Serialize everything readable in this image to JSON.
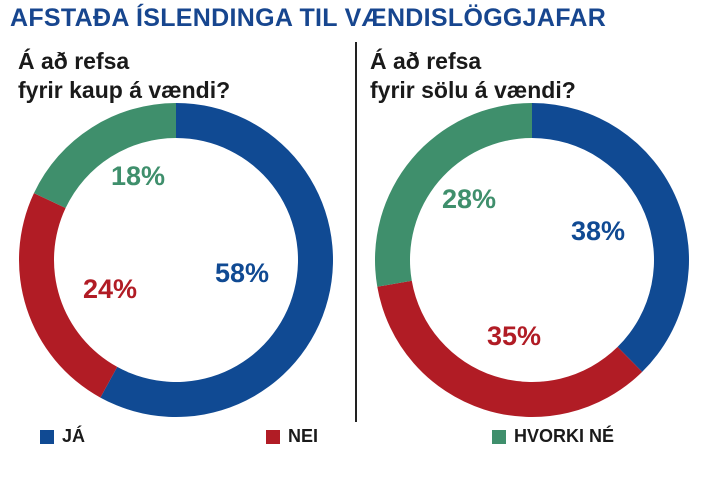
{
  "title": "AFSTAÐA ÍSLENDINGA TIL VÆNDISLÖGGJAFAR",
  "colors": {
    "ja": "#104a93",
    "nei": "#b11c25",
    "hvorki": "#3f8f6c",
    "title": "#17468f"
  },
  "legend": [
    {
      "label": "JÁ",
      "color": "#104a93"
    },
    {
      "label": "NEI",
      "color": "#b11c25"
    },
    {
      "label": "HVORKI NÉ",
      "color": "#3f8f6c"
    }
  ],
  "chart_data": [
    {
      "type": "pie",
      "title_lines": [
        "Á að refsa",
        "fyrir kaup á vændi?"
      ],
      "categories": [
        "JÁ",
        "NEI",
        "HVORKI NÉ"
      ],
      "values": [
        58,
        24,
        18
      ],
      "labels": [
        "58%",
        "24%",
        "18%"
      ]
    },
    {
      "type": "pie",
      "title_lines": [
        "Á að refsa",
        "fyrir sölu á vændi?"
      ],
      "categories": [
        "JÁ",
        "NEI",
        "HVORKI NÉ"
      ],
      "values": [
        38,
        35,
        28
      ],
      "labels": [
        "38%",
        "35%",
        "28%"
      ]
    }
  ]
}
